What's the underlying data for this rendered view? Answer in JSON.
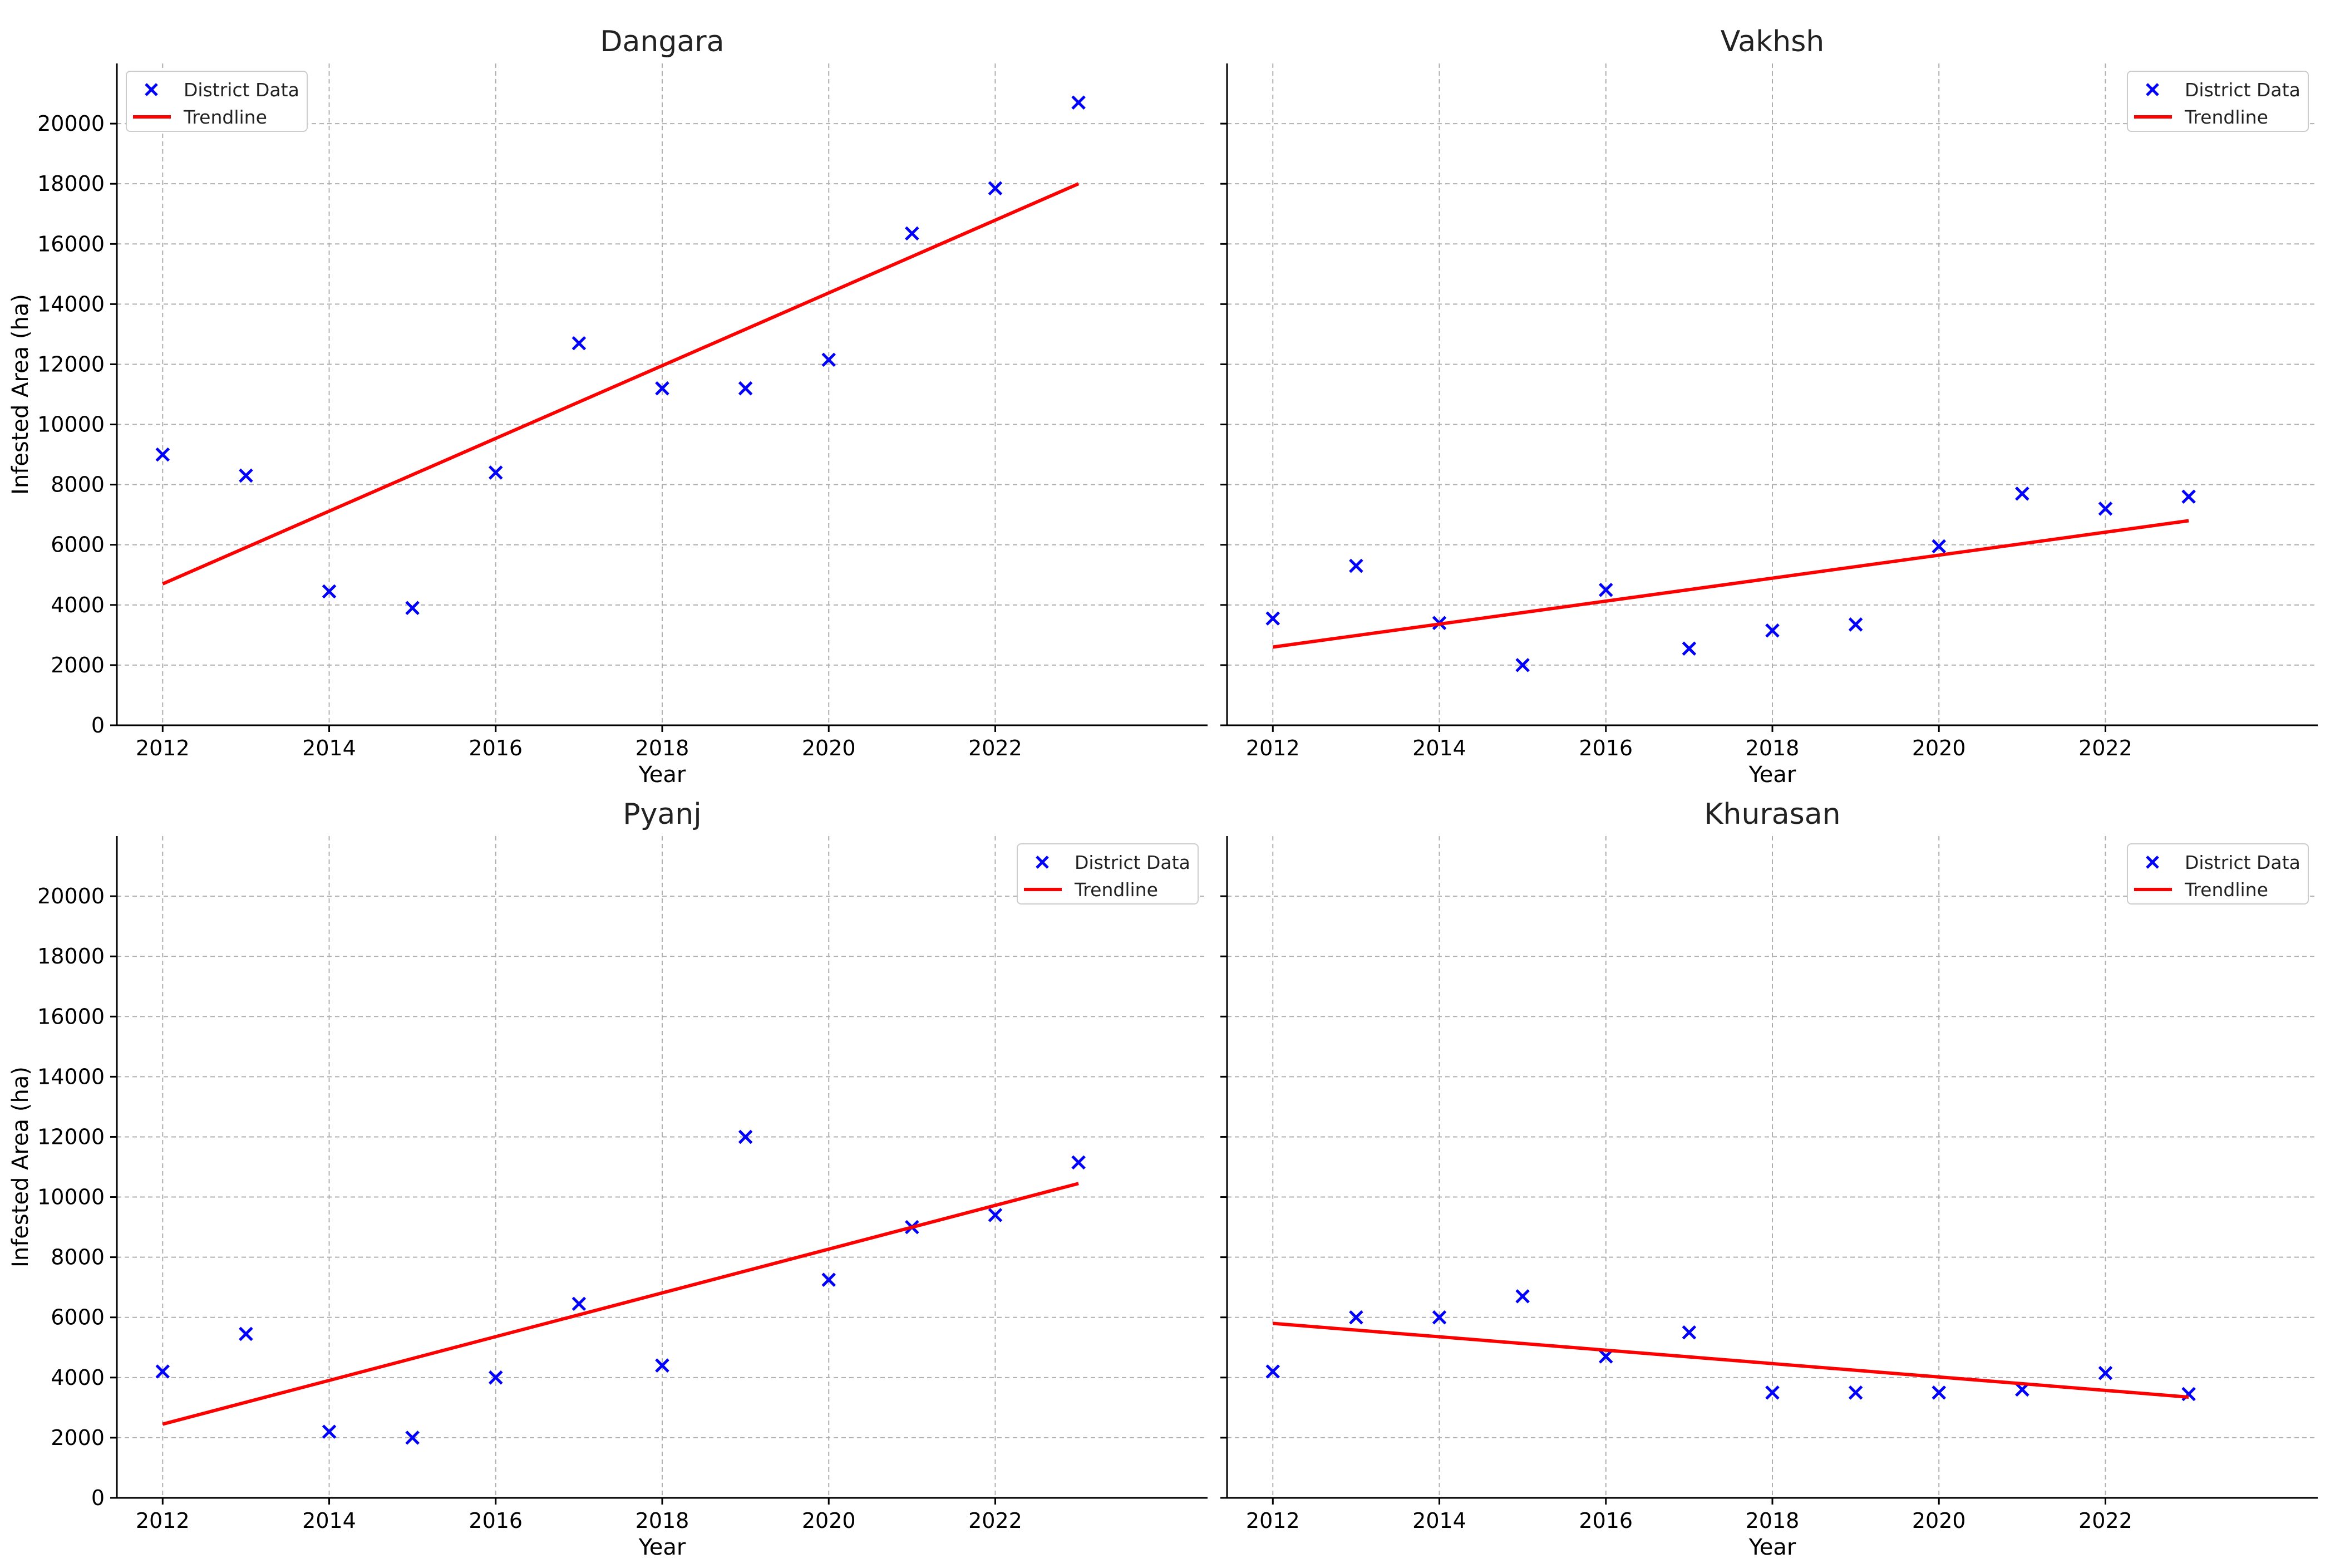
{
  "chart_data": [
    {
      "type": "scatter",
      "title": "Dangara",
      "xlabel": "Year",
      "ylabel": "Infested Area (ha)",
      "xlim": [
        2011.45,
        2024.55
      ],
      "ylim": [
        0,
        22000
      ],
      "xticks": [
        2012,
        2014,
        2016,
        2018,
        2020,
        2022
      ],
      "yticks": [
        0,
        2000,
        4000,
        6000,
        8000,
        10000,
        12000,
        14000,
        16000,
        18000,
        20000
      ],
      "grid": true,
      "legend_position": "top-left",
      "legend": [
        "District Data",
        "Trendline"
      ],
      "series": [
        {
          "name": "District Data",
          "type": "scatter",
          "color": "#0000ff",
          "x": [
            2012,
            2013,
            2014,
            2015,
            2016,
            2017,
            2018,
            2019,
            2020,
            2021,
            2022,
            2023
          ],
          "y": [
            9000,
            8300,
            4450,
            3900,
            8400,
            12700,
            11200,
            11200,
            12150,
            16350,
            17850,
            20700
          ]
        },
        {
          "name": "Trendline",
          "type": "line",
          "color": "#ff0000",
          "x": [
            2012,
            2023
          ],
          "y": [
            4700,
            18000
          ]
        }
      ]
    },
    {
      "type": "scatter",
      "title": "Vakhsh",
      "xlabel": "Year",
      "ylabel": "",
      "xlim": [
        2011.45,
        2024.55
      ],
      "ylim": [
        0,
        22000
      ],
      "xticks": [
        2012,
        2014,
        2016,
        2018,
        2020,
        2022
      ],
      "yticks": [],
      "grid": true,
      "legend_position": "top-right",
      "legend": [
        "District Data",
        "Trendline"
      ],
      "series": [
        {
          "name": "District Data",
          "type": "scatter",
          "color": "#0000ff",
          "x": [
            2012,
            2013,
            2014,
            2015,
            2016,
            2017,
            2018,
            2019,
            2020,
            2021,
            2022,
            2023
          ],
          "y": [
            3550,
            5300,
            3400,
            2000,
            4500,
            2550,
            3150,
            3350,
            5950,
            7700,
            7200,
            7600
          ]
        },
        {
          "name": "Trendline",
          "type": "line",
          "color": "#ff0000",
          "x": [
            2012,
            2023
          ],
          "y": [
            2600,
            6800
          ]
        }
      ]
    },
    {
      "type": "scatter",
      "title": "Pyanj",
      "xlabel": "Year",
      "ylabel": "Infested Area (ha)",
      "xlim": [
        2011.45,
        2024.55
      ],
      "ylim": [
        0,
        22000
      ],
      "xticks": [
        2012,
        2014,
        2016,
        2018,
        2020,
        2022
      ],
      "yticks": [
        0,
        2000,
        4000,
        6000,
        8000,
        10000,
        12000,
        14000,
        16000,
        18000,
        20000
      ],
      "grid": true,
      "legend_position": "top-right",
      "legend": [
        "District Data",
        "Trendline"
      ],
      "series": [
        {
          "name": "District Data",
          "type": "scatter",
          "color": "#0000ff",
          "x": [
            2012,
            2013,
            2014,
            2015,
            2016,
            2017,
            2018,
            2019,
            2020,
            2021,
            2022,
            2023
          ],
          "y": [
            4200,
            5450,
            2200,
            2000,
            4000,
            6450,
            4400,
            12000,
            7250,
            9000,
            9400,
            11150
          ]
        },
        {
          "name": "Trendline",
          "type": "line",
          "color": "#ff0000",
          "x": [
            2012,
            2023
          ],
          "y": [
            2450,
            10450
          ]
        }
      ]
    },
    {
      "type": "scatter",
      "title": "Khurasan",
      "xlabel": "Year",
      "ylabel": "",
      "xlim": [
        2011.45,
        2024.55
      ],
      "ylim": [
        0,
        22000
      ],
      "xticks": [
        2012,
        2014,
        2016,
        2018,
        2020,
        2022
      ],
      "yticks": [],
      "grid": true,
      "legend_position": "top-right",
      "legend": [
        "District Data",
        "Trendline"
      ],
      "series": [
        {
          "name": "District Data",
          "type": "scatter",
          "color": "#0000ff",
          "x": [
            2012,
            2013,
            2014,
            2015,
            2016,
            2017,
            2018,
            2019,
            2020,
            2021,
            2022,
            2023
          ],
          "y": [
            4200,
            6000,
            6000,
            6700,
            4700,
            5500,
            3500,
            3500,
            3500,
            3600,
            4150,
            3450
          ]
        },
        {
          "name": "Trendline",
          "type": "line",
          "color": "#ff0000",
          "x": [
            2012,
            2023
          ],
          "y": [
            5800,
            3350
          ]
        }
      ]
    }
  ]
}
